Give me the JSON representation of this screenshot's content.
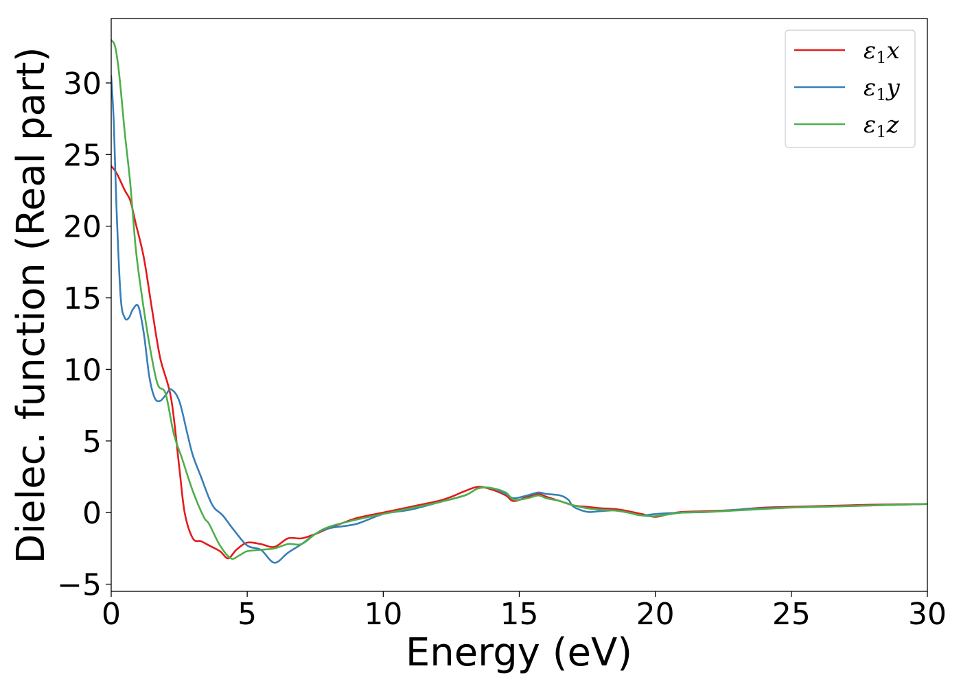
{
  "chart_data": {
    "type": "line",
    "title": "",
    "xlabel": "Energy (eV)",
    "ylabel": "Dielec. function (Real part)",
    "xlim": [
      0,
      30
    ],
    "ylim": [
      -5.5,
      34.5
    ],
    "xticks": [
      0,
      5,
      10,
      15,
      20,
      25,
      30
    ],
    "xtick_labels": [
      "0",
      "5",
      "10",
      "15",
      "20",
      "25",
      "30"
    ],
    "yticks": [
      -5,
      0,
      5,
      10,
      15,
      20,
      25,
      30
    ],
    "ytick_labels": [
      "−5",
      "0",
      "5",
      "10",
      "15",
      "20",
      "25",
      "30"
    ],
    "grid": false,
    "legend_position": "top-right",
    "series": [
      {
        "name": "ε₁x",
        "legend_main": "ε",
        "legend_sub": "1",
        "legend_var": "x",
        "color": "#e41a1c",
        "x": [
          0,
          0.2,
          0.5,
          0.7,
          0.9,
          1.2,
          1.5,
          1.8,
          2.2,
          2.5,
          2.7,
          3.0,
          3.3,
          3.6,
          4.0,
          4.3,
          4.6,
          5.0,
          5.5,
          6.0,
          6.5,
          7.0,
          7.5,
          8.0,
          9.0,
          10.0,
          11.0,
          12.0,
          12.5,
          13.0,
          13.5,
          14.0,
          14.5,
          14.8,
          15.3,
          15.7,
          16.0,
          16.5,
          17.0,
          17.5,
          18.0,
          18.5,
          19.0,
          19.5,
          20.0,
          20.5,
          21.0,
          22.0,
          23.0,
          24.0,
          25.0,
          26.0,
          27.0,
          28.0,
          29.0,
          30.0
        ],
        "values": [
          24.2,
          23.7,
          22.5,
          21.8,
          20.2,
          17.8,
          14.2,
          10.8,
          8.0,
          3.2,
          0.0,
          -1.8,
          -2.0,
          -2.3,
          -2.7,
          -3.2,
          -2.6,
          -2.1,
          -2.2,
          -2.4,
          -1.8,
          -1.8,
          -1.5,
          -1.1,
          -0.4,
          0.0,
          0.4,
          0.8,
          1.1,
          1.5,
          1.8,
          1.6,
          1.2,
          0.8,
          1.1,
          1.3,
          1.1,
          0.8,
          0.5,
          0.4,
          0.3,
          0.25,
          0.1,
          -0.1,
          -0.3,
          -0.1,
          0.05,
          0.1,
          0.2,
          0.35,
          0.4,
          0.45,
          0.5,
          0.55,
          0.58,
          0.6
        ]
      },
      {
        "name": "ε₁y",
        "legend_main": "ε",
        "legend_sub": "1",
        "legend_var": "y",
        "color": "#377eb8",
        "x": [
          0,
          0.1,
          0.2,
          0.35,
          0.5,
          0.65,
          0.8,
          1.0,
          1.2,
          1.4,
          1.6,
          1.8,
          2.0,
          2.2,
          2.5,
          2.8,
          3.0,
          3.3,
          3.6,
          3.8,
          4.1,
          4.5,
          5.0,
          5.5,
          6.0,
          6.5,
          7.0,
          7.5,
          8.0,
          9.0,
          10.0,
          11.0,
          12.0,
          13.0,
          13.5,
          14.0,
          14.5,
          14.8,
          15.3,
          15.7,
          16.0,
          16.5,
          16.8,
          17.0,
          17.5,
          18.0,
          18.5,
          19.0,
          19.5,
          20.0,
          21.0,
          22.0,
          23.0,
          24.0,
          25.0,
          26.0,
          27.0,
          28.0,
          29.0,
          30.0
        ],
        "values": [
          30.5,
          27.0,
          21.0,
          15.0,
          13.6,
          13.6,
          14.2,
          14.4,
          12.5,
          9.5,
          8.0,
          7.8,
          8.2,
          8.6,
          7.8,
          5.5,
          4.0,
          2.5,
          1.0,
          0.3,
          -0.2,
          -1.2,
          -2.3,
          -2.6,
          -3.5,
          -2.8,
          -2.2,
          -1.5,
          -1.1,
          -0.8,
          -0.1,
          0.2,
          0.7,
          1.2,
          1.7,
          1.7,
          1.3,
          1.0,
          1.2,
          1.4,
          1.3,
          1.2,
          0.9,
          0.4,
          0.05,
          0.1,
          0.15,
          0.0,
          -0.2,
          -0.1,
          0.0,
          0.05,
          0.2,
          0.3,
          0.35,
          0.4,
          0.45,
          0.5,
          0.55,
          0.6
        ]
      },
      {
        "name": "ε₁z",
        "legend_main": "ε",
        "legend_sub": "1",
        "legend_var": "z",
        "color": "#4daf4a",
        "x": [
          0,
          0.15,
          0.3,
          0.5,
          0.7,
          0.9,
          1.1,
          1.4,
          1.7,
          2.0,
          2.3,
          2.6,
          3.0,
          3.4,
          3.6,
          4.0,
          4.4,
          4.7,
          5.0,
          5.5,
          6.0,
          6.5,
          7.0,
          7.5,
          8.0,
          9.0,
          10.0,
          11.0,
          12.0,
          13.0,
          13.5,
          14.0,
          14.5,
          14.8,
          15.3,
          15.7,
          16.0,
          16.5,
          17.0,
          17.5,
          18.0,
          18.5,
          19.0,
          19.5,
          20.0,
          21.0,
          22.0,
          23.0,
          24.0,
          25.0,
          26.0,
          27.0,
          28.0,
          29.0,
          30.0
        ],
        "values": [
          33.0,
          32.5,
          30.5,
          26.5,
          23.0,
          18.5,
          15.5,
          11.8,
          9.0,
          8.3,
          5.5,
          3.8,
          1.5,
          -0.3,
          -0.8,
          -2.3,
          -3.2,
          -3.0,
          -2.7,
          -2.6,
          -2.5,
          -2.2,
          -2.2,
          -1.5,
          -1.0,
          -0.5,
          -0.1,
          0.3,
          0.7,
          1.2,
          1.7,
          1.7,
          1.4,
          0.9,
          1.0,
          1.2,
          1.0,
          0.8,
          0.5,
          0.3,
          0.2,
          0.15,
          0.0,
          -0.2,
          -0.25,
          0.0,
          0.05,
          0.15,
          0.25,
          0.35,
          0.4,
          0.45,
          0.5,
          0.55,
          0.6
        ]
      }
    ]
  }
}
